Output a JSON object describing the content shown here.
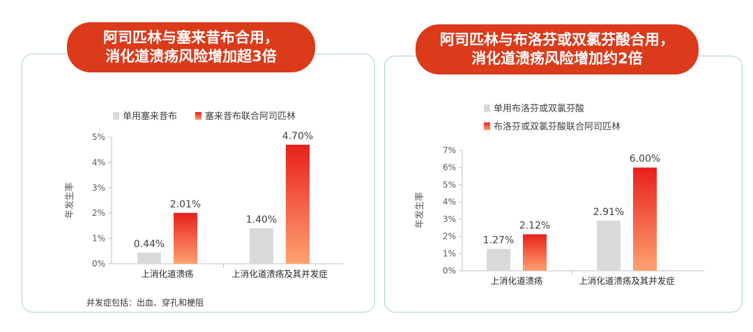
{
  "panels": [
    {
      "title_line1": "阿司匹林与塞来昔布合用，",
      "title_line2": "消化道溃疡风险增加超3倍",
      "footnote": "并发症包括：出血、穿孔和梗阻"
    },
    {
      "title_line1": "阿司匹林与布洛芬或双氯芬酸合用，",
      "title_line2": "消化道溃疡风险增加约2倍"
    }
  ],
  "colors": {
    "banner": "#db3a1b",
    "bar_single": "#d9d9d9",
    "bar_combo_top": "#e8201c",
    "bar_combo_bottom": "#ffa270",
    "panel_border": "#a9d4cf"
  },
  "chart_data": [
    {
      "type": "bar",
      "ylabel": "年发生率",
      "ylim": [
        0,
        5
      ],
      "yticks": [
        "0%",
        "1%",
        "2%",
        "3%",
        "4%",
        "5%"
      ],
      "categories": [
        "上消化道溃疡",
        "上消化道溃疡及其并发症"
      ],
      "legend_position": "top",
      "series": [
        {
          "name": "单用塞来昔布",
          "values": [
            0.44,
            1.4
          ],
          "labels": [
            "0.44%",
            "1.40%"
          ]
        },
        {
          "name": "塞来昔布联合阿司匹林",
          "values": [
            2.01,
            4.7
          ],
          "labels": [
            "2.01%",
            "4.70%"
          ]
        }
      ]
    },
    {
      "type": "bar",
      "ylabel": "年发生率",
      "ylim": [
        0,
        7
      ],
      "yticks": [
        "0%",
        "1%",
        "2%",
        "3%",
        "4%",
        "5%",
        "6%",
        "7%"
      ],
      "categories": [
        "上消化道溃疡",
        "上消化道溃疡及其并发症"
      ],
      "legend_position": "top",
      "series": [
        {
          "name": "单用布洛芬或双氯芬酸",
          "values": [
            1.27,
            2.91
          ],
          "labels": [
            "1.27%",
            "2.91%"
          ]
        },
        {
          "name": "布洛芬或双氯芬酸联合阿司匹林",
          "values": [
            2.12,
            6.0
          ],
          "labels": [
            "2.12%",
            "6.00%"
          ]
        }
      ]
    }
  ]
}
